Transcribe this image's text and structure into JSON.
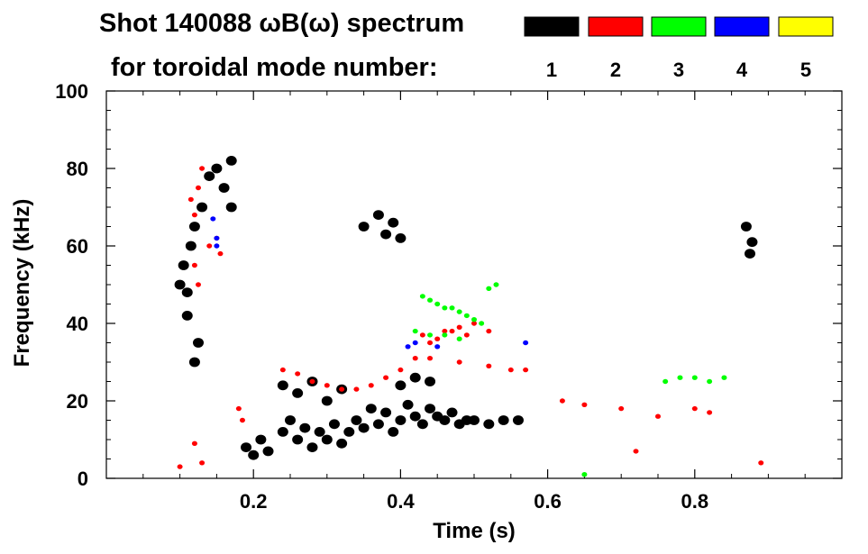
{
  "chart_data": {
    "type": "scatter",
    "title_line1": "Shot 140088 ωB(ω) spectrum",
    "title_line2": "for toroidal mode number:",
    "xlabel": "Time (s)",
    "ylabel": "Frequency (kHz)",
    "xlim": [
      0.0,
      1.0
    ],
    "ylim": [
      0,
      100
    ],
    "xticks": [
      0.2,
      0.4,
      0.6,
      0.8
    ],
    "xtick_labels": [
      "0.2",
      "0.4",
      "0.6",
      "0.8"
    ],
    "yticks": [
      0,
      20,
      40,
      60,
      80,
      100
    ],
    "ytick_labels": [
      "0",
      "20",
      "40",
      "60",
      "80",
      "100"
    ],
    "grid": false,
    "legend_position": "top-right",
    "series": [
      {
        "name": "1",
        "color": "#000000",
        "points": [
          [
            0.1,
            50
          ],
          [
            0.105,
            55
          ],
          [
            0.11,
            48
          ],
          [
            0.115,
            60
          ],
          [
            0.11,
            42
          ],
          [
            0.12,
            65
          ],
          [
            0.125,
            35
          ],
          [
            0.12,
            30
          ],
          [
            0.13,
            70
          ],
          [
            0.14,
            78
          ],
          [
            0.15,
            80
          ],
          [
            0.16,
            75
          ],
          [
            0.17,
            82
          ],
          [
            0.17,
            70
          ],
          [
            0.19,
            8
          ],
          [
            0.2,
            6
          ],
          [
            0.21,
            10
          ],
          [
            0.22,
            7
          ],
          [
            0.24,
            12
          ],
          [
            0.25,
            15
          ],
          [
            0.26,
            10
          ],
          [
            0.27,
            13
          ],
          [
            0.28,
            8
          ],
          [
            0.29,
            12
          ],
          [
            0.3,
            10
          ],
          [
            0.31,
            14
          ],
          [
            0.32,
            9
          ],
          [
            0.33,
            12
          ],
          [
            0.34,
            15
          ],
          [
            0.35,
            13
          ],
          [
            0.36,
            18
          ],
          [
            0.37,
            14
          ],
          [
            0.38,
            17
          ],
          [
            0.39,
            12
          ],
          [
            0.4,
            15
          ],
          [
            0.41,
            19
          ],
          [
            0.42,
            16
          ],
          [
            0.43,
            14
          ],
          [
            0.44,
            18
          ],
          [
            0.45,
            16
          ],
          [
            0.46,
            15
          ],
          [
            0.47,
            17
          ],
          [
            0.48,
            14
          ],
          [
            0.49,
            15
          ],
          [
            0.5,
            15
          ],
          [
            0.52,
            14
          ],
          [
            0.54,
            15
          ],
          [
            0.56,
            15
          ],
          [
            0.24,
            24
          ],
          [
            0.26,
            22
          ],
          [
            0.28,
            25
          ],
          [
            0.3,
            20
          ],
          [
            0.32,
            23
          ],
          [
            0.4,
            24
          ],
          [
            0.42,
            26
          ],
          [
            0.44,
            25
          ],
          [
            0.35,
            65
          ],
          [
            0.37,
            68
          ],
          [
            0.38,
            63
          ],
          [
            0.39,
            66
          ],
          [
            0.4,
            62
          ],
          [
            0.875,
            58
          ],
          [
            0.878,
            61
          ],
          [
            0.87,
            65
          ]
        ]
      },
      {
        "name": "2",
        "color": "#ff0000",
        "points": [
          [
            0.115,
            72
          ],
          [
            0.12,
            68
          ],
          [
            0.125,
            75
          ],
          [
            0.13,
            80
          ],
          [
            0.14,
            60
          ],
          [
            0.15,
            62
          ],
          [
            0.155,
            58
          ],
          [
            0.12,
            55
          ],
          [
            0.125,
            50
          ],
          [
            0.18,
            18
          ],
          [
            0.185,
            15
          ],
          [
            0.24,
            28
          ],
          [
            0.26,
            27
          ],
          [
            0.28,
            25
          ],
          [
            0.3,
            24
          ],
          [
            0.32,
            23
          ],
          [
            0.34,
            23
          ],
          [
            0.36,
            24
          ],
          [
            0.38,
            26
          ],
          [
            0.4,
            28
          ],
          [
            0.42,
            31
          ],
          [
            0.44,
            35
          ],
          [
            0.46,
            38
          ],
          [
            0.48,
            39
          ],
          [
            0.5,
            40
          ],
          [
            0.52,
            38
          ],
          [
            0.44,
            31
          ],
          [
            0.48,
            30
          ],
          [
            0.52,
            29
          ],
          [
            0.55,
            28
          ],
          [
            0.57,
            28
          ],
          [
            0.43,
            37
          ],
          [
            0.45,
            36
          ],
          [
            0.47,
            38
          ],
          [
            0.49,
            37
          ],
          [
            0.62,
            20
          ],
          [
            0.65,
            19
          ],
          [
            0.7,
            18
          ],
          [
            0.75,
            16
          ],
          [
            0.8,
            18
          ],
          [
            0.82,
            17
          ],
          [
            0.1,
            3
          ],
          [
            0.12,
            9
          ],
          [
            0.13,
            4
          ],
          [
            0.89,
            4
          ],
          [
            0.72,
            7
          ]
        ]
      },
      {
        "name": "3",
        "color": "#00ff00",
        "points": [
          [
            0.43,
            47
          ],
          [
            0.44,
            46
          ],
          [
            0.45,
            45
          ],
          [
            0.46,
            44
          ],
          [
            0.47,
            44
          ],
          [
            0.48,
            43
          ],
          [
            0.49,
            42
          ],
          [
            0.5,
            41
          ],
          [
            0.51,
            40
          ],
          [
            0.42,
            38
          ],
          [
            0.44,
            37
          ],
          [
            0.46,
            37
          ],
          [
            0.48,
            36
          ],
          [
            0.53,
            50
          ],
          [
            0.52,
            49
          ],
          [
            0.8,
            26
          ],
          [
            0.76,
            25
          ],
          [
            0.78,
            26
          ],
          [
            0.82,
            25
          ],
          [
            0.84,
            26
          ],
          [
            0.65,
            1
          ]
        ]
      },
      {
        "name": "4",
        "color": "#0000ff",
        "points": [
          [
            0.145,
            67
          ],
          [
            0.15,
            62
          ],
          [
            0.15,
            60
          ],
          [
            0.41,
            34
          ],
          [
            0.42,
            35
          ],
          [
            0.45,
            34
          ],
          [
            0.57,
            35
          ]
        ]
      },
      {
        "name": "5",
        "color": "#ffff00",
        "points": []
      }
    ]
  }
}
